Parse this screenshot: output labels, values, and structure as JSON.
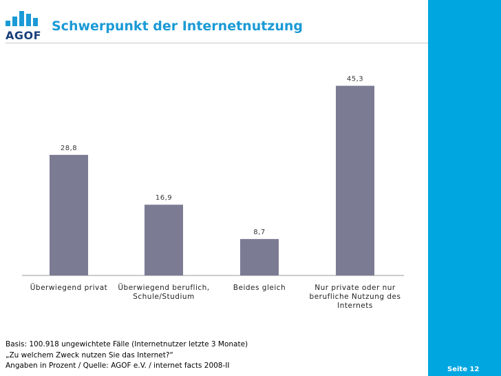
{
  "brand": {
    "logo_text": "AGOF",
    "accent_color": "#1a9ad6",
    "side_color": "#00a6e0"
  },
  "page": {
    "title": "Schwerpunkt der Internetnutzung",
    "page_number": "Seite 12"
  },
  "footnotes": [
    "Basis: 100.918 ungewichtete Fälle (Internetnutzer letzte 3 Monate)",
    "„Zu welchem Zweck nutzen Sie das Internet?“",
    "Angaben in Prozent / Quelle: AGOF e.V. / internet facts 2008-II"
  ],
  "chart_data": {
    "type": "bar",
    "title": "",
    "xlabel": "",
    "ylabel": "",
    "ylim": [
      0,
      50
    ],
    "bar_color": "#7b7b93",
    "categories": [
      [
        "Überwiegend privat"
      ],
      [
        "Überwiegend beruflich,",
        "Schule/Studium"
      ],
      [
        "Beides gleich"
      ],
      [
        "Nur private oder nur",
        "berufliche Nutzung des",
        "Internets"
      ]
    ],
    "values": [
      28.8,
      16.9,
      8.7,
      45.3
    ],
    "value_labels": [
      "28,8",
      "16,9",
      "8,7",
      "45,3"
    ]
  }
}
